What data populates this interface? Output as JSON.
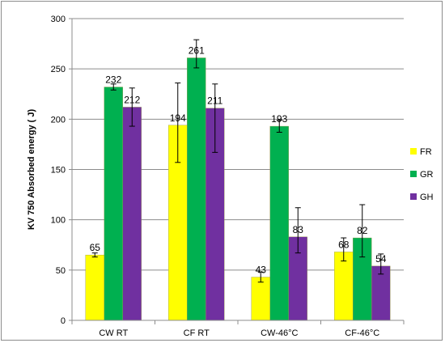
{
  "chart_data": {
    "type": "bar",
    "title": "",
    "xlabel": "",
    "ylabel": "KV 750 Absorbed energy ( J)",
    "ylim": [
      0,
      300
    ],
    "yticks": [
      0,
      50,
      100,
      150,
      200,
      250,
      300
    ],
    "grid": true,
    "legend_position": "right",
    "categories": [
      "CW RT",
      "CF RT",
      "CW-46°C",
      "CF-46°C"
    ],
    "series": [
      {
        "name": "FR",
        "color": "#ffff00",
        "values": [
          65,
          194,
          43,
          68
        ],
        "err_low": [
          63,
          157,
          38,
          59
        ],
        "err_high": [
          67,
          236,
          48,
          82
        ]
      },
      {
        "name": "GR",
        "color": "#00b050",
        "values": [
          232,
          261,
          193,
          82
        ],
        "err_low": [
          229,
          251,
          187,
          63
        ],
        "err_high": [
          235,
          279,
          199,
          115
        ]
      },
      {
        "name": "GH",
        "color": "#7030a0",
        "values": [
          212,
          211,
          83,
          54
        ],
        "err_low": [
          193,
          167,
          67,
          46
        ],
        "err_high": [
          231,
          235,
          112,
          66
        ]
      }
    ],
    "data_labels": [
      [
        "65",
        "232",
        "212"
      ],
      [
        "194",
        "261",
        "211"
      ],
      [
        "43",
        "193",
        "83"
      ],
      [
        "68",
        "82",
        "54"
      ]
    ]
  }
}
